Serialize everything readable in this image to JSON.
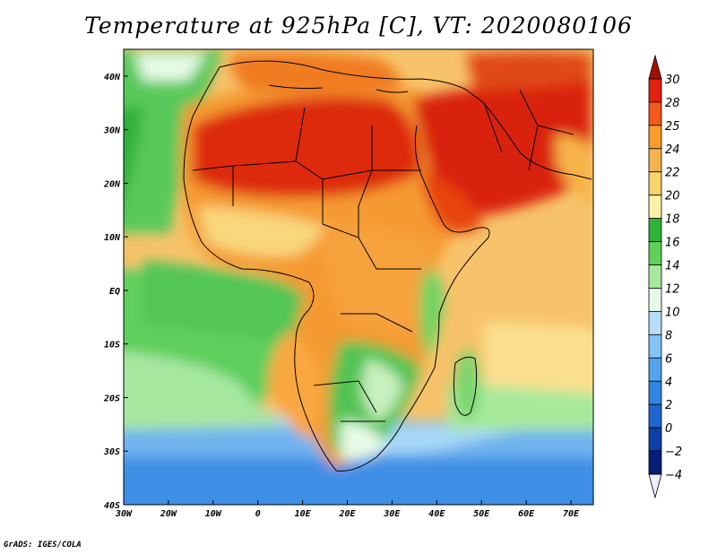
{
  "title": "Temperature at 925hPa [C], VT: 2020080106",
  "credit": "GrADS: IGES/COLA",
  "map": {
    "lon_range": [
      -30,
      75
    ],
    "lat_range": [
      -40,
      45
    ],
    "lon_ticks": [
      {
        "lon": -30,
        "label": "30W"
      },
      {
        "lon": -20,
        "label": "20W"
      },
      {
        "lon": -10,
        "label": "10W"
      },
      {
        "lon": 0,
        "label": "0"
      },
      {
        "lon": 10,
        "label": "10E"
      },
      {
        "lon": 20,
        "label": "20E"
      },
      {
        "lon": 30,
        "label": "30E"
      },
      {
        "lon": 40,
        "label": "40E"
      },
      {
        "lon": 50,
        "label": "50E"
      },
      {
        "lon": 60,
        "label": "60E"
      },
      {
        "lon": 70,
        "label": "70E"
      }
    ],
    "lat_ticks": [
      {
        "lat": 40,
        "label": "40N"
      },
      {
        "lat": 30,
        "label": "30N"
      },
      {
        "lat": 20,
        "label": "20N"
      },
      {
        "lat": 10,
        "label": "10N"
      },
      {
        "lat": 0,
        "label": "EQ"
      },
      {
        "lat": -10,
        "label": "10S"
      },
      {
        "lat": -20,
        "label": "20S"
      },
      {
        "lat": -30,
        "label": "30S"
      },
      {
        "lat": -40,
        "label": "40S"
      }
    ]
  },
  "colorbar": {
    "levels": [
      "30",
      "28",
      "25",
      "24",
      "22",
      "20",
      "18",
      "16",
      "14",
      "12",
      "10",
      "8",
      "6",
      "4",
      "2",
      "0",
      "−2",
      "−4"
    ],
    "colors": [
      "#a50f05",
      "#e0220d",
      "#f4581b",
      "#f99c2a",
      "#f7b34d",
      "#fbd46b",
      "#fff0a8",
      "#2db438",
      "#5fd05b",
      "#a7e99b",
      "#e6fbe6",
      "#b6dcf7",
      "#82c2f5",
      "#55a3ee",
      "#3385e3",
      "#1d66d2",
      "#0d3fa8",
      "#071f74",
      "#eeeeff"
    ]
  }
}
